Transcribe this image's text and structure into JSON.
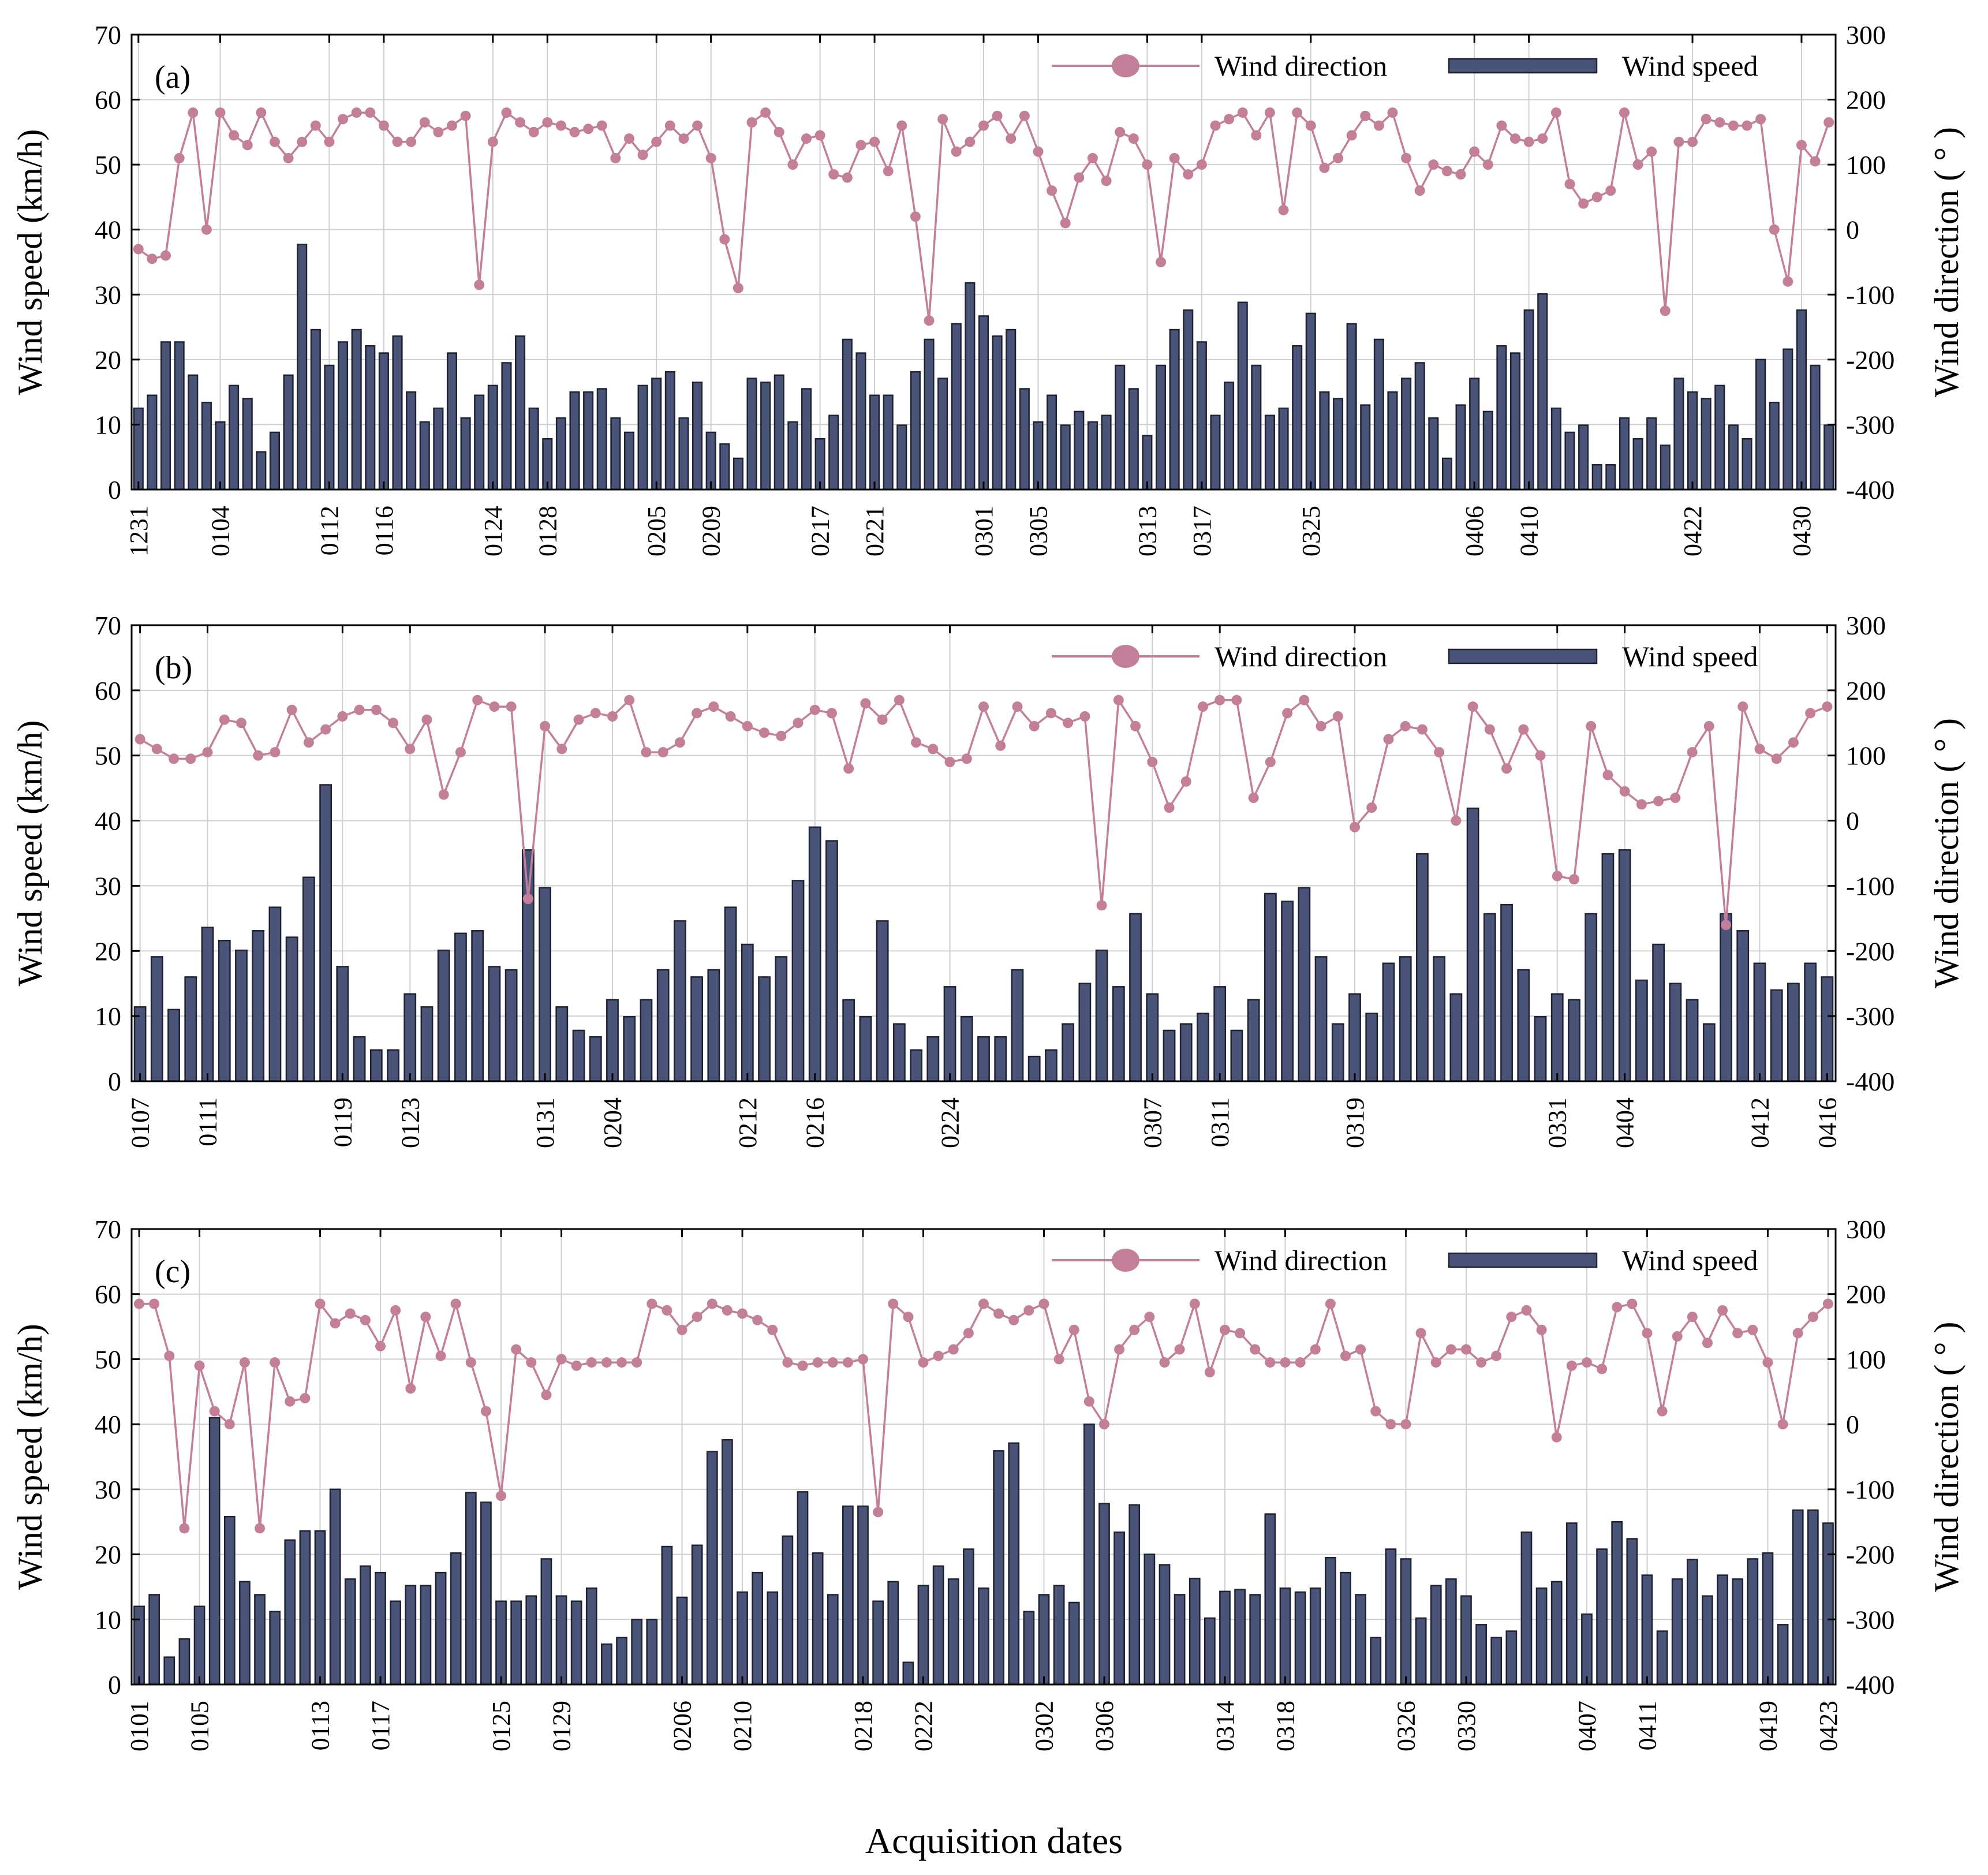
{
  "figure": {
    "xlabel": "Acquisition dates",
    "legend": {
      "direction": "Wind direction",
      "speed": "Wind speed",
      "placement": "top-right"
    },
    "colors": {
      "bars": "#4a5478",
      "bar_edge": "#1e2233",
      "direction": "#c47f98"
    }
  },
  "chart_data": [
    {
      "type": "bar+line",
      "panel_label": "(a)",
      "ylabel_left": "Wind speed (km/h)",
      "ylabel_right": "Wind direction ( ° )",
      "ylim_left": [
        0,
        70
      ],
      "ylim_right": [
        -400,
        300
      ],
      "yticks_left": [
        0,
        10,
        20,
        30,
        40,
        50,
        60,
        70
      ],
      "yticks_right": [
        -400,
        -300,
        -200,
        -100,
        0,
        100,
        200,
        300
      ],
      "grid": true,
      "date_labels": [
        {
          "index": 0,
          "label": "1231"
        },
        {
          "index": 6,
          "label": "0104"
        },
        {
          "index": 14,
          "label": "0112"
        },
        {
          "index": 18,
          "label": "0116"
        },
        {
          "index": 26,
          "label": "0124"
        },
        {
          "index": 30,
          "label": "0128"
        },
        {
          "index": 38,
          "label": "0205"
        },
        {
          "index": 42,
          "label": "0209"
        },
        {
          "index": 50,
          "label": "0217"
        },
        {
          "index": 54,
          "label": "0221"
        },
        {
          "index": 62,
          "label": "0301"
        },
        {
          "index": 66,
          "label": "0305"
        },
        {
          "index": 74,
          "label": "0313"
        },
        {
          "index": 78,
          "label": "0317"
        },
        {
          "index": 86,
          "label": "0325"
        },
        {
          "index": 98,
          "label": "0406"
        },
        {
          "index": 102,
          "label": "0410"
        },
        {
          "index": 114,
          "label": "0422"
        },
        {
          "index": 122,
          "label": "0430"
        }
      ],
      "speed": [
        12.5,
        14.5,
        22.7,
        22.7,
        17.6,
        13.4,
        10.4,
        16,
        14,
        5.8,
        8.8,
        17.6,
        37.7,
        24.6,
        19.1,
        22.7,
        24.6,
        22.1,
        21,
        23.6,
        15,
        10.4,
        12.5,
        21,
        11,
        14.5,
        16,
        19.5,
        23.6,
        12.5,
        7.8,
        11,
        15,
        15,
        15.5,
        11,
        8.8,
        16,
        17.1,
        18.1,
        11,
        16.5,
        8.8,
        7,
        4.8,
        17.1,
        16.5,
        17.6,
        10.4,
        15.5,
        7.8,
        11.4,
        23.1,
        21,
        14.5,
        14.5,
        9.9,
        18.1,
        23.1,
        17.1,
        25.5,
        31.8,
        26.7,
        23.6,
        24.6,
        15.5,
        10.4,
        14.5,
        9.9,
        12,
        10.4,
        11.4,
        19.1,
        15.5,
        8.3,
        19.1,
        24.6,
        27.6,
        22.7,
        11.4,
        16.5,
        28.8,
        19.1,
        11.4,
        12.5,
        22.1,
        27.1,
        15,
        14,
        25.5,
        13,
        23.1,
        15,
        17.1,
        19.5,
        11,
        4.8,
        13,
        17.1,
        12,
        22.1,
        21,
        27.6,
        30.1,
        12.5,
        8.8,
        9.9,
        3.8,
        3.8,
        11,
        7.8,
        11,
        6.8,
        17.1,
        15,
        14,
        16,
        9.9,
        7.8,
        20,
        13.4,
        21.6,
        27.6,
        19.1,
        9.9
      ],
      "direction": [
        -30,
        -45,
        -40,
        110,
        180,
        0,
        180,
        145,
        130,
        180,
        135,
        110,
        135,
        160,
        135,
        170,
        180,
        180,
        160,
        135,
        135,
        165,
        150,
        160,
        175,
        -85,
        135,
        180,
        165,
        150,
        165,
        160,
        150,
        155,
        160,
        110,
        140,
        115,
        135,
        160,
        140,
        160,
        110,
        -15,
        -90,
        165,
        180,
        150,
        100,
        140,
        145,
        85,
        80,
        130,
        135,
        90,
        160,
        20,
        -140,
        170,
        120,
        135,
        160,
        175,
        140,
        175,
        120,
        60,
        10,
        80,
        110,
        75,
        150,
        140,
        100,
        -50,
        110,
        85,
        100,
        160,
        170,
        180,
        145,
        180,
        30,
        180,
        160,
        95,
        110,
        145,
        175,
        160,
        180,
        110,
        60,
        100,
        90,
        85,
        120,
        100,
        160,
        140,
        135,
        140,
        180,
        70,
        40,
        50,
        60,
        180,
        100,
        120,
        -125,
        135,
        135,
        170,
        165,
        160,
        160,
        170,
        0,
        -80,
        130,
        105,
        165
      ]
    },
    {
      "type": "bar+line",
      "panel_label": "(b)",
      "ylabel_left": "Wind speed (km/h)",
      "ylabel_right": "Wind direction ( ° )",
      "ylim_left": [
        0,
        70
      ],
      "ylim_right": [
        -400,
        300
      ],
      "yticks_left": [
        0,
        10,
        20,
        30,
        40,
        50,
        60,
        70
      ],
      "yticks_right": [
        -400,
        -300,
        -200,
        -100,
        0,
        100,
        200,
        300
      ],
      "grid": true,
      "date_labels": [
        {
          "index": 0,
          "label": "0107"
        },
        {
          "index": 4,
          "label": "0111"
        },
        {
          "index": 12,
          "label": "0119"
        },
        {
          "index": 16,
          "label": "0123"
        },
        {
          "index": 24,
          "label": "0131"
        },
        {
          "index": 28,
          "label": "0204"
        },
        {
          "index": 36,
          "label": "0212"
        },
        {
          "index": 40,
          "label": "0216"
        },
        {
          "index": 48,
          "label": "0224"
        },
        {
          "index": 60,
          "label": "0307"
        },
        {
          "index": 64,
          "label": "0311"
        },
        {
          "index": 72,
          "label": "0319"
        },
        {
          "index": 84,
          "label": "0331"
        },
        {
          "index": 88,
          "label": "0404"
        },
        {
          "index": 96,
          "label": "0412"
        },
        {
          "index": 100,
          "label": "0416"
        }
      ],
      "speed": [
        11.4,
        19.1,
        11,
        16,
        23.6,
        21.6,
        20.1,
        23.1,
        26.7,
        22.1,
        31.3,
        45.5,
        17.6,
        6.8,
        4.8,
        4.8,
        13.4,
        11.4,
        20.1,
        22.7,
        23.1,
        17.6,
        17.1,
        35.5,
        29.7,
        11.4,
        7.8,
        6.8,
        12.5,
        9.9,
        12.5,
        17.1,
        24.6,
        16,
        17.1,
        26.7,
        21,
        16,
        19.1,
        30.8,
        39,
        36.9,
        12.5,
        9.9,
        24.6,
        8.8,
        4.8,
        6.8,
        14.5,
        9.9,
        6.8,
        6.8,
        17.1,
        3.8,
        4.8,
        8.8,
        15,
        20.1,
        14.5,
        25.7,
        13.4,
        7.8,
        8.8,
        10.4,
        14.5,
        7.8,
        12.5,
        28.8,
        27.6,
        29.7,
        19.1,
        8.8,
        13.4,
        10.4,
        18.1,
        19.1,
        34.9,
        19.1,
        13.4,
        41.9,
        25.7,
        27.1,
        17.1,
        9.9,
        13.4,
        12.5,
        25.7,
        34.9,
        35.5,
        15.5,
        21,
        15,
        12.5,
        8.8,
        25.7,
        23.1,
        18.1,
        14,
        15,
        18.1,
        16
      ],
      "direction": [
        125,
        110,
        95,
        95,
        105,
        155,
        150,
        100,
        105,
        170,
        120,
        140,
        160,
        170,
        170,
        150,
        110,
        155,
        40,
        105,
        185,
        175,
        175,
        -120,
        145,
        110,
        155,
        165,
        160,
        185,
        105,
        105,
        120,
        165,
        175,
        160,
        145,
        135,
        130,
        150,
        170,
        165,
        80,
        180,
        155,
        185,
        120,
        110,
        90,
        95,
        175,
        115,
        175,
        145,
        165,
        150,
        160,
        -130,
        185,
        145,
        90,
        20,
        60,
        175,
        185,
        185,
        35,
        90,
        165,
        185,
        145,
        160,
        -10,
        20,
        125,
        145,
        140,
        105,
        0,
        175,
        140,
        80,
        140,
        100,
        -85,
        -90,
        145,
        70,
        45,
        25,
        30,
        35,
        105,
        145,
        -160,
        175,
        110,
        95,
        120,
        165,
        175
      ]
    },
    {
      "type": "bar+line",
      "panel_label": "(c)",
      "ylabel_left": "Wind speed (km/h)",
      "ylabel_right": "Wind direction ( ° )",
      "ylim_left": [
        0,
        70
      ],
      "ylim_right": [
        -400,
        300
      ],
      "yticks_left": [
        0,
        10,
        20,
        30,
        40,
        50,
        60,
        70
      ],
      "yticks_right": [
        -400,
        -300,
        -200,
        -100,
        0,
        100,
        200,
        300
      ],
      "grid": true,
      "date_labels": [
        {
          "index": 0,
          "label": "0101"
        },
        {
          "index": 4,
          "label": "0105"
        },
        {
          "index": 12,
          "label": "0113"
        },
        {
          "index": 16,
          "label": "0117"
        },
        {
          "index": 24,
          "label": "0125"
        },
        {
          "index": 28,
          "label": "0129"
        },
        {
          "index": 36,
          "label": "0206"
        },
        {
          "index": 40,
          "label": "0210"
        },
        {
          "index": 48,
          "label": "0218"
        },
        {
          "index": 52,
          "label": "0222"
        },
        {
          "index": 60,
          "label": "0302"
        },
        {
          "index": 64,
          "label": "0306"
        },
        {
          "index": 72,
          "label": "0314"
        },
        {
          "index": 76,
          "label": "0318"
        },
        {
          "index": 84,
          "label": "0326"
        },
        {
          "index": 88,
          "label": "0330"
        },
        {
          "index": 96,
          "label": "0407"
        },
        {
          "index": 100,
          "label": "0411"
        },
        {
          "index": 108,
          "label": "0419"
        },
        {
          "index": 112,
          "label": "0423"
        }
      ],
      "speed": [
        12,
        13.8,
        4.2,
        7,
        12,
        41,
        25.8,
        15.8,
        13.8,
        11.2,
        22.2,
        23.6,
        23.6,
        30,
        16.2,
        18.2,
        17.2,
        12.8,
        15.2,
        15.2,
        17.2,
        20.2,
        29.5,
        28,
        12.8,
        12.8,
        13.6,
        19.3,
        13.6,
        12.8,
        14.8,
        6.2,
        7.2,
        10,
        10,
        21.2,
        13.4,
        21.4,
        35.8,
        37.6,
        14.2,
        17.2,
        14.2,
        22.8,
        29.6,
        20.2,
        13.8,
        27.4,
        27.4,
        12.8,
        15.8,
        3.4,
        15.2,
        18.2,
        16.2,
        20.8,
        14.8,
        35.9,
        37.1,
        11.2,
        13.8,
        15.2,
        12.6,
        40,
        27.8,
        23.4,
        27.6,
        20,
        18.4,
        13.8,
        16.3,
        10.2,
        14.3,
        14.6,
        13.8,
        26.2,
        14.8,
        14.2,
        14.8,
        19.5,
        17.2,
        13.8,
        7.2,
        20.8,
        19.3,
        10.2,
        15.2,
        16.2,
        13.6,
        9.2,
        7.2,
        8.2,
        23.4,
        14.8,
        15.8,
        24.8,
        10.8,
        20.8,
        25,
        22.4,
        16.8,
        8.2,
        16.2,
        19.2,
        13.6,
        16.8,
        16.2,
        19.3,
        20.2,
        9.2,
        26.8,
        26.8,
        24.8
      ],
      "direction": [
        185,
        185,
        105,
        -160,
        90,
        20,
        0,
        95,
        -160,
        95,
        35,
        40,
        185,
        155,
        170,
        160,
        120,
        175,
        55,
        165,
        105,
        185,
        95,
        20,
        -110,
        115,
        95,
        45,
        100,
        90,
        95,
        95,
        95,
        95,
        185,
        175,
        145,
        165,
        185,
        175,
        170,
        160,
        145,
        95,
        90,
        95,
        95,
        95,
        100,
        -135,
        185,
        165,
        95,
        105,
        115,
        140,
        185,
        170,
        160,
        175,
        185,
        100,
        145,
        35,
        0,
        115,
        145,
        165,
        95,
        115,
        185,
        80,
        145,
        140,
        115,
        95,
        95,
        95,
        115,
        185,
        105,
        115,
        20,
        0,
        0,
        140,
        95,
        115,
        115,
        95,
        105,
        165,
        175,
        145,
        -20,
        90,
        95,
        85,
        180,
        185,
        140,
        20,
        135,
        165,
        125,
        175,
        140,
        145,
        95,
        0,
        140,
        165,
        185
      ]
    }
  ]
}
